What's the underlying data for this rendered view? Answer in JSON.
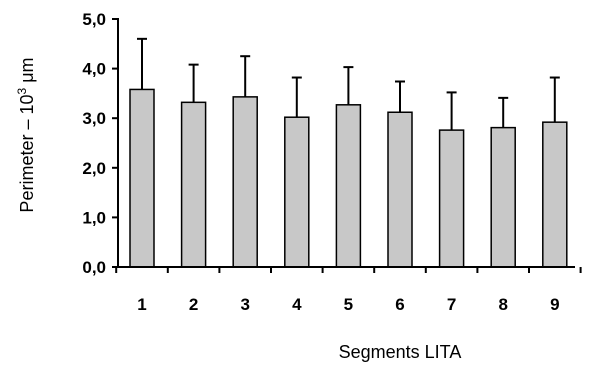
{
  "chart_data": {
    "type": "bar",
    "title": "",
    "xlabel": "Segments LITA",
    "ylabel": "Perimeter – 10",
    "ylabel_superscript": "3",
    "ylabel_unit": " μm",
    "categories": [
      "1",
      "2",
      "3",
      "4",
      "5",
      "6",
      "7",
      "8",
      "9"
    ],
    "series": [
      {
        "values": [
          3.58,
          3.32,
          3.43,
          3.02,
          3.27,
          3.12,
          2.76,
          2.81,
          2.92
        ],
        "error_upper": [
          1.02,
          0.76,
          0.82,
          0.8,
          0.76,
          0.62,
          0.76,
          0.6,
          0.9
        ]
      }
    ],
    "ylim": [
      0,
      5
    ],
    "yticks": [
      "0,0",
      "1,0",
      "2,0",
      "3,0",
      "4,0",
      "5,0"
    ],
    "grid": false,
    "legend": "none",
    "colors": {
      "bar_fill": "#c8c8c8",
      "bar_stroke": "#000000",
      "error_bar": "#000000",
      "axis": "#000000"
    }
  }
}
